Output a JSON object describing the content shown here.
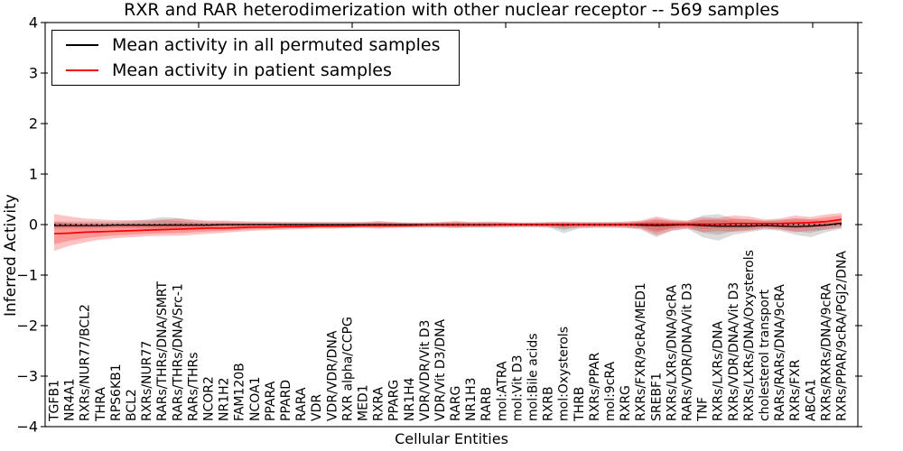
{
  "chart_data": {
    "type": "line",
    "title": "RXR and RAR heterodimerization with other nuclear receptor -- 569 samples",
    "xlabel": "Cellular Entities",
    "ylabel": "Inferred Activity",
    "ylim": [
      -4,
      4
    ],
    "yticks": [
      4,
      3,
      2,
      1,
      0,
      -1,
      -2,
      -3,
      -4
    ],
    "yticklabels": [
      "4",
      "3",
      "2",
      "1",
      "0",
      "−1",
      "−2",
      "−3",
      "−4"
    ],
    "xticks_major_units": [
      10,
      20,
      30,
      40,
      50
    ],
    "grid": false,
    "zero_line": true,
    "legend_position": "upper-left",
    "legend": [
      {
        "label": "Mean activity in all permuted samples",
        "color": "#000000"
      },
      {
        "label": "Mean activity in patient samples",
        "color": "#ff0000"
      }
    ],
    "categories": [
      "TGFB1",
      "NR4A1",
      "RXRs/NUR77/BCL2",
      "THRA",
      "RPS6KB1",
      "BCL2",
      "RXRs/NUR77",
      "RARs/THRs/DNA/SMRT",
      "RARs/THRs/DNA/Src-1",
      "RARs/THRs",
      "NCOR2",
      "NR1H2",
      "FAM120B",
      "NCOA1",
      "PPARA",
      "PPARD",
      "RARA",
      "VDR",
      "VDR/VDR/DNA",
      "RXR alpha/CCPG",
      "MED1",
      "RXRA",
      "PPARG",
      "NR1H4",
      "VDR/VDR/Vit D3",
      "VDR/Vit D3/DNA",
      "RARG",
      "NR1H3",
      "RARB",
      "mol:ATRA",
      "mol:Vit D3",
      "mol:Bile acids",
      "RXRB",
      "mol:Oxysterols",
      "THRB",
      "RXRs/PPAR",
      "mol:9cRA",
      "RXRG",
      "RXRs/FXR/9cRA/MED1",
      "SREBF1",
      "RXRs/LXRs/DNA/9cRA",
      "RARs/VDR/DNA/Vit D3",
      "TNF",
      "RXRs/LXRs/DNA",
      "RXRs/VDR/DNA/Vit D3",
      "RXRs/LXRs/DNA/Oxysterols",
      "cholesterol transport",
      "RARs/RARs/DNA/9cRA",
      "RXRs/FXR",
      "ABCA1",
      "RXRs/RXRs/DNA/9cRA",
      "RXRs/PPAR/9cRA/PGJ2/DNA"
    ],
    "series": [
      {
        "name": "Mean activity in all permuted samples",
        "color": "#000000",
        "values": [
          -0.02,
          -0.02,
          -0.02,
          -0.02,
          -0.01,
          -0.01,
          -0.01,
          -0.01,
          -0.01,
          -0.01,
          -0.01,
          0,
          0,
          0,
          0,
          0,
          0,
          0,
          0,
          0,
          0,
          0,
          0,
          0,
          0,
          0,
          0,
          0,
          0,
          0,
          0,
          0,
          0,
          -0.01,
          0,
          0,
          0,
          0,
          -0.01,
          -0.02,
          -0.01,
          0,
          -0.02,
          -0.03,
          -0.03,
          -0.03,
          -0.02,
          -0.03,
          -0.04,
          -0.03,
          -0.01,
          0.03
        ]
      },
      {
        "name": "Mean activity in patient samples",
        "color": "#ff0000",
        "values": [
          -0.18,
          -0.17,
          -0.15,
          -0.14,
          -0.13,
          -0.12,
          -0.11,
          -0.1,
          -0.09,
          -0.08,
          -0.07,
          -0.07,
          -0.06,
          -0.05,
          -0.05,
          -0.04,
          -0.04,
          -0.03,
          -0.03,
          -0.03,
          -0.02,
          -0.02,
          -0.02,
          -0.02,
          -0.01,
          -0.01,
          -0.01,
          -0.01,
          -0.01,
          0,
          0,
          0,
          0,
          0,
          0,
          0,
          0,
          0,
          0.01,
          0.01,
          0.01,
          0.01,
          0.01,
          0.01,
          0.02,
          0.02,
          0.02,
          0.02,
          0.03,
          0.04,
          0.06,
          0.1
        ]
      }
    ],
    "bands": [
      {
        "name": "permuted-samples-range",
        "fill": "rgba(90,90,90,0.22)",
        "upper": [
          0.06,
          0.06,
          0.06,
          0.06,
          0.06,
          0.07,
          0.1,
          0.15,
          0.13,
          0.08,
          0.06,
          0.06,
          0.05,
          0.05,
          0.05,
          0.05,
          0.05,
          0.05,
          0.05,
          0.05,
          0.05,
          0.06,
          0.05,
          0.04,
          0.04,
          0.05,
          0.06,
          0.05,
          0.05,
          0.05,
          0.04,
          0.04,
          0.05,
          0.05,
          0.05,
          0.05,
          0.05,
          0.05,
          0.07,
          0.12,
          0.08,
          0.07,
          0.18,
          0.21,
          0.12,
          0.1,
          0.08,
          0.1,
          0.12,
          0.1,
          0.08,
          0.06
        ],
        "lower": [
          -0.08,
          -0.08,
          -0.08,
          -0.07,
          -0.07,
          -0.07,
          -0.08,
          -0.1,
          -0.1,
          -0.08,
          -0.07,
          -0.06,
          -0.06,
          -0.05,
          -0.05,
          -0.05,
          -0.05,
          -0.05,
          -0.05,
          -0.05,
          -0.05,
          -0.06,
          -0.05,
          -0.05,
          -0.05,
          -0.05,
          -0.06,
          -0.05,
          -0.05,
          -0.05,
          -0.05,
          -0.05,
          -0.05,
          -0.17,
          -0.08,
          -0.06,
          -0.06,
          -0.07,
          -0.1,
          -0.25,
          -0.12,
          -0.08,
          -0.25,
          -0.32,
          -0.2,
          -0.15,
          -0.1,
          -0.12,
          -0.2,
          -0.25,
          -0.15,
          -0.08
        ]
      },
      {
        "name": "patient-samples-range",
        "fill": "rgba(255,40,40,0.28)",
        "upper": [
          0.21,
          0.16,
          0.12,
          0.1,
          0.09,
          0.09,
          0.09,
          0.1,
          0.12,
          0.1,
          0.08,
          0.08,
          0.07,
          0.06,
          0.06,
          0.05,
          0.05,
          0.05,
          0.05,
          0.05,
          0.05,
          0.07,
          0.05,
          0.04,
          0.04,
          0.05,
          0.07,
          0.05,
          0.06,
          0.05,
          0.04,
          0.04,
          0.05,
          0.06,
          0.05,
          0.05,
          0.05,
          0.06,
          0.08,
          0.16,
          0.1,
          0.08,
          0.15,
          0.13,
          0.18,
          0.16,
          0.1,
          0.12,
          0.18,
          0.15,
          0.2,
          0.23
        ],
        "lower": [
          -0.52,
          -0.42,
          -0.35,
          -0.3,
          -0.27,
          -0.25,
          -0.23,
          -0.22,
          -0.22,
          -0.2,
          -0.18,
          -0.16,
          -0.14,
          -0.12,
          -0.11,
          -0.1,
          -0.09,
          -0.08,
          -0.08,
          -0.07,
          -0.07,
          -0.08,
          -0.07,
          -0.06,
          -0.06,
          -0.06,
          -0.07,
          -0.06,
          -0.06,
          -0.06,
          -0.05,
          -0.05,
          -0.06,
          -0.07,
          -0.06,
          -0.06,
          -0.06,
          -0.06,
          -0.08,
          -0.21,
          -0.12,
          -0.08,
          -0.15,
          -0.13,
          -0.14,
          -0.12,
          -0.08,
          -0.1,
          -0.15,
          -0.12,
          -0.1,
          -0.07
        ]
      }
    ]
  }
}
